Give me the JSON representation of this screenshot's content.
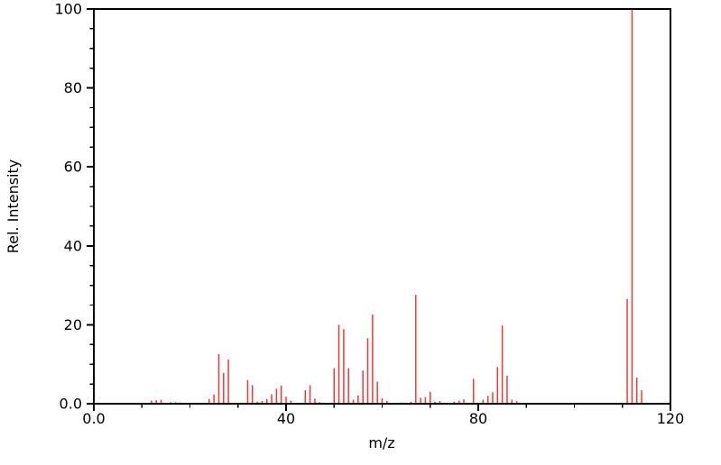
{
  "chart_data": {
    "type": "bar",
    "subtype": "mass-spectrum-stick-plot",
    "title": "",
    "xlabel": "m/z",
    "ylabel": "Rel. Intensity",
    "xlim": [
      0,
      120
    ],
    "ylim": [
      0,
      100
    ],
    "grid": false,
    "legend_position": "none",
    "bar_color": "#f93636",
    "spine_color": "#000000",
    "background_color": "#ffffff",
    "x_major_ticks": [
      0,
      40,
      80,
      120
    ],
    "x_major_tick_labels": [
      "0.0",
      "40",
      "80",
      "120"
    ],
    "x_minor_tick_step": 10,
    "y_major_ticks": [
      0,
      20,
      40,
      60,
      80,
      100
    ],
    "y_major_tick_labels": [
      "0.0",
      "20",
      "40",
      "60",
      "80",
      "100"
    ],
    "y_minor_tick_step": 5,
    "series": [
      {
        "name": "relative intensity",
        "points": [
          [
            12,
            0.8
          ],
          [
            13,
            0.9
          ],
          [
            14,
            1.0
          ],
          [
            16,
            0.4
          ],
          [
            17,
            0.4
          ],
          [
            18,
            0.3
          ],
          [
            24,
            1.2
          ],
          [
            25,
            2.3
          ],
          [
            26,
            12.6
          ],
          [
            27,
            7.8
          ],
          [
            28,
            11.2
          ],
          [
            32,
            6.0
          ],
          [
            33,
            4.7
          ],
          [
            34,
            0.5
          ],
          [
            35,
            0.7
          ],
          [
            36,
            1.2
          ],
          [
            37,
            2.4
          ],
          [
            38,
            3.8
          ],
          [
            39,
            4.6
          ],
          [
            40,
            1.8
          ],
          [
            41,
            0.8
          ],
          [
            44,
            3.4
          ],
          [
            45,
            4.7
          ],
          [
            46,
            1.3
          ],
          [
            47,
            0.4
          ],
          [
            50,
            9.0
          ],
          [
            51,
            20.0
          ],
          [
            52,
            18.9
          ],
          [
            53,
            9.0
          ],
          [
            54,
            1.0
          ],
          [
            55,
            2.1
          ],
          [
            56,
            8.4
          ],
          [
            57,
            16.6
          ],
          [
            58,
            22.6
          ],
          [
            59,
            5.6
          ],
          [
            60,
            1.4
          ],
          [
            61,
            0.7
          ],
          [
            64,
            0.3
          ],
          [
            66,
            0.5
          ],
          [
            67,
            27.6
          ],
          [
            68,
            1.5
          ],
          [
            69,
            1.7
          ],
          [
            70,
            3.0
          ],
          [
            71,
            0.5
          ],
          [
            72,
            0.7
          ],
          [
            75,
            0.5
          ],
          [
            76,
            0.8
          ],
          [
            77,
            1.1
          ],
          [
            79,
            6.3
          ],
          [
            81,
            1.0
          ],
          [
            82,
            2.0
          ],
          [
            83,
            2.9
          ],
          [
            84,
            9.3
          ],
          [
            85,
            19.8
          ],
          [
            86,
            7.1
          ],
          [
            87,
            1.0
          ],
          [
            88,
            0.6
          ],
          [
            111,
            26.5
          ],
          [
            112,
            100.0
          ],
          [
            113,
            6.6
          ],
          [
            114,
            3.4
          ]
        ]
      }
    ]
  }
}
